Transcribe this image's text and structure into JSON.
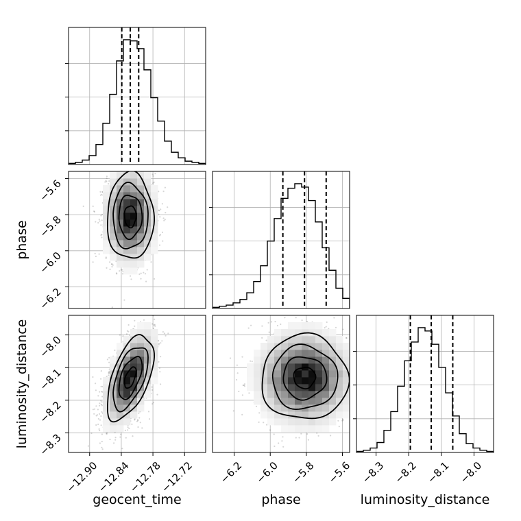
{
  "chart_data": {
    "type": "corner",
    "parameters": [
      "geocent_time",
      "phase",
      "luminosity_distance"
    ],
    "axes": {
      "geocent_time": {
        "label": "geocent_time",
        "range": [
          -12.94,
          -12.68
        ],
        "ticks": [
          -12.9,
          -12.84,
          -12.78,
          -12.72
        ],
        "tick_labels": [
          "−12.90",
          "−12.84",
          "−12.78",
          "−12.72"
        ],
        "quantiles": [
          -12.839,
          -12.823,
          -12.807
        ],
        "hist_counts": [
          1,
          2,
          4,
          8,
          18,
          37,
          63,
          93,
          112,
          111,
          104,
          85,
          60,
          39,
          21,
          11,
          6,
          3,
          2,
          1
        ]
      },
      "phase": {
        "label": "phase",
        "range": [
          -6.32,
          -5.56
        ],
        "ticks": [
          -6.2,
          -6.0,
          -5.8,
          -5.6
        ],
        "tick_labels": [
          "−6.2",
          "−6.0",
          "−5.8",
          "−5.6"
        ],
        "quantiles": [
          -5.93,
          -5.81,
          -5.69
        ],
        "hist_counts": [
          1,
          2,
          3,
          5,
          8,
          14,
          24,
          38,
          60,
          80,
          98,
          107,
          111,
          108,
          96,
          77,
          54,
          34,
          18,
          9
        ]
      },
      "luminosity_distance": {
        "label": "luminosity_distance",
        "range": [
          -8.36,
          -7.94
        ],
        "ticks": [
          -8.3,
          -8.2,
          -8.1,
          -8.0
        ],
        "tick_labels": [
          "−8.3",
          "−8.2",
          "−8.1",
          "−8.0"
        ],
        "quantiles": [
          -8.195,
          -8.131,
          -8.065
        ],
        "hist_counts": [
          1,
          2,
          4,
          9,
          20,
          37,
          60,
          83,
          100,
          113,
          110,
          98,
          77,
          54,
          33,
          17,
          8,
          4,
          2,
          1
        ]
      }
    },
    "pairs": [
      {
        "x": "geocent_time",
        "y": "phase",
        "mean": [
          -12.823,
          -5.81
        ],
        "sd": [
          0.022,
          0.12
        ],
        "corr": 0.0
      },
      {
        "x": "geocent_time",
        "y": "luminosity_distance",
        "mean": [
          -12.823,
          -8.131
        ],
        "sd": [
          0.022,
          0.065
        ],
        "corr": 0.55
      },
      {
        "x": "phase",
        "y": "luminosity_distance",
        "mean": [
          -5.81,
          -8.131
        ],
        "sd": [
          0.12,
          0.065
        ],
        "corr": 0.0
      }
    ],
    "grid": true,
    "contour_levels_sigma": [
      0.5,
      1.0,
      1.5,
      2.0
    ]
  }
}
